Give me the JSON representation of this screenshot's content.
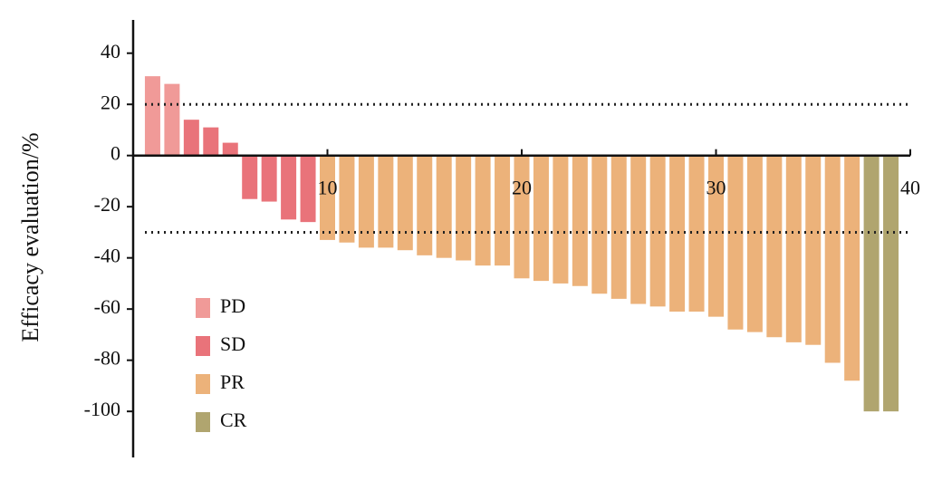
{
  "chart_data": {
    "type": "bar",
    "ylabel": "Efficacy evaluation/%",
    "series": [
      {
        "name": "PD",
        "color": "#f09a98",
        "x": [
          1,
          2
        ],
        "values": [
          31,
          28
        ]
      },
      {
        "name": "SD",
        "color": "#e9737a",
        "x": [
          3,
          4,
          5,
          6,
          7,
          8,
          9
        ],
        "values": [
          14,
          11,
          5,
          -17,
          -18,
          -25,
          -26
        ]
      },
      {
        "name": "PR",
        "color": "#ecb27a",
        "x": [
          10,
          11,
          12,
          13,
          14,
          15,
          16,
          17,
          18,
          19,
          20,
          21,
          22,
          23,
          24,
          25,
          26,
          27,
          28,
          29,
          30,
          31,
          32,
          33,
          34,
          35,
          36,
          37
        ],
        "values": [
          -33,
          -34,
          -36,
          -36,
          -37,
          -39,
          -40,
          -41,
          -43,
          -43,
          -48,
          -49,
          -50,
          -51,
          -54,
          -56,
          -58,
          -59,
          -61,
          -61,
          -63,
          -68,
          -69,
          -71,
          -73,
          -74,
          -81,
          -88
        ]
      },
      {
        "name": "CR",
        "color": "#b0a56f",
        "x": [
          38,
          39
        ],
        "values": [
          -100,
          -100
        ]
      }
    ],
    "xlim": [
      0,
      40
    ],
    "xticks": [
      10,
      20,
      30,
      40
    ],
    "ylim": [
      -118,
      53
    ],
    "yticks": [
      40,
      20,
      0,
      -20,
      -40,
      -60,
      -80,
      -100
    ],
    "reference_lines": [
      20,
      -30
    ],
    "legend": "lower left"
  }
}
